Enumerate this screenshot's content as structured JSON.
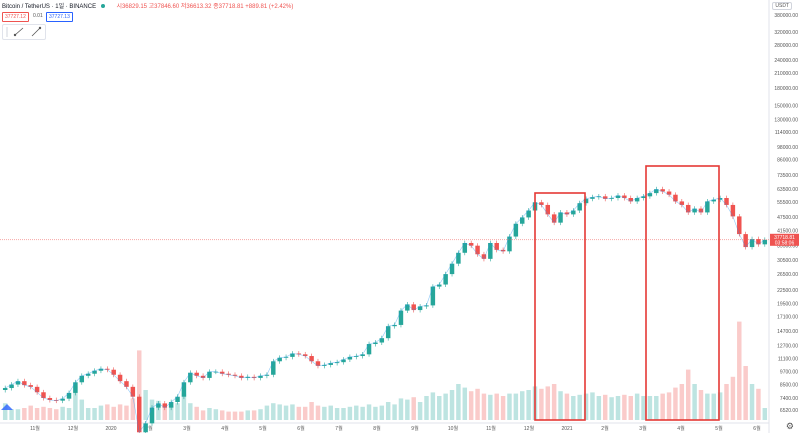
{
  "header": {
    "title": "Bitcoin / TetherUS · 1일 · BINANCE",
    "ohlc": "시36829.15 고37846.60 저36613.32 종37718.81 +889.81 (+2.42%)"
  },
  "trade": {
    "sell_price": "37727.12",
    "spread": "0.01",
    "buy_price": "37727.13"
  },
  "currency": "USDT",
  "price_label": {
    "value": "37718.81",
    "timer": "03:58:06"
  },
  "icons": {
    "settings": "gear-icon",
    "tool_a": "chart-tool-icon",
    "tool_b": "pencil-icon",
    "logo": "brand-logo-icon"
  },
  "colors": {
    "up": "#26a69a",
    "down": "#ef5350",
    "highlight": "#e53935",
    "blue_line": "#2196f3"
  },
  "chart_data": {
    "type": "candlestick",
    "y_axis_scale": "log",
    "y_ticks": [
      "380000.00",
      "320000.00",
      "280000.00",
      "240000.00",
      "210000.00",
      "180000.00",
      "150000.00",
      "130000.00",
      "114000.00",
      "98000.00",
      "86000.00",
      "73500.00",
      "63500.00",
      "55500.00",
      "47500.00",
      "41500.00",
      "35500.00",
      "30500.00",
      "26500.00",
      "22500.00",
      "19500.00",
      "17100.00",
      "14700.00",
      "12700.00",
      "11100.00",
      "9700.00",
      "8500.00",
      "7400.00",
      "6520.00"
    ],
    "x_ticks": [
      "11월",
      "12월",
      "2020",
      "2월",
      "3월",
      "4월",
      "5월",
      "6월",
      "7월",
      "8월",
      "9월",
      "10월",
      "11월",
      "12월",
      "2021",
      "2월",
      "3월",
      "4월",
      "5월",
      "6월"
    ],
    "closes": [
      8200,
      8500,
      8800,
      8450,
      8300,
      7850,
      7400,
      7250,
      7200,
      7350,
      7800,
      8700,
      9300,
      9500,
      9800,
      10000,
      9900,
      9400,
      8800,
      8300,
      7500,
      5200,
      5700,
      6700,
      7000,
      6700,
      7100,
      7500,
      8700,
      9600,
      9300,
      9100,
      9700,
      9700,
      9500,
      9400,
      9300,
      9100,
      9200,
      9100,
      9300,
      9400,
      10800,
      11200,
      11300,
      11700,
      11600,
      11400,
      10800,
      10300,
      10400,
      10600,
      10700,
      11000,
      11300,
      11400,
      11600,
      12900,
      13100,
      13700,
      15500,
      15700,
      18200,
      19400,
      18300,
      19000,
      19200,
      23300,
      23800,
      26500,
      29500,
      33000,
      36500,
      35500,
      32500,
      31000,
      36500,
      34000,
      33500,
      39000,
      44500,
      47500,
      51000,
      55500,
      54000,
      49000,
      45000,
      50000,
      49000,
      51000,
      55000,
      57500,
      58500,
      59000,
      57500,
      58000,
      59500,
      58000,
      56000,
      58000,
      59000,
      61000,
      63500,
      62000,
      60000,
      56000,
      54000,
      50000,
      52000,
      50000,
      56000,
      57000,
      58000,
      54000,
      48000,
      40000,
      35000,
      38000,
      36000,
      37718.81
    ],
    "volume_rel": [
      0.14,
      0.09,
      0.09,
      0.1,
      0.12,
      0.1,
      0.11,
      0.1,
      0.09,
      0.11,
      0.1,
      0.28,
      0.17,
      0.1,
      0.1,
      0.12,
      0.13,
      0.11,
      0.13,
      0.12,
      0.18,
      0.58,
      0.25,
      0.17,
      0.16,
      0.13,
      0.12,
      0.14,
      0.22,
      0.14,
      0.11,
      0.08,
      0.1,
      0.09,
      0.08,
      0.07,
      0.07,
      0.07,
      0.08,
      0.08,
      0.09,
      0.12,
      0.14,
      0.13,
      0.12,
      0.13,
      0.11,
      0.11,
      0.15,
      0.12,
      0.11,
      0.12,
      0.1,
      0.1,
      0.11,
      0.12,
      0.11,
      0.13,
      0.11,
      0.12,
      0.15,
      0.13,
      0.18,
      0.17,
      0.19,
      0.15,
      0.2,
      0.23,
      0.2,
      0.22,
      0.25,
      0.3,
      0.27,
      0.24,
      0.26,
      0.22,
      0.21,
      0.22,
      0.2,
      0.22,
      0.22,
      0.24,
      0.25,
      0.28,
      0.26,
      0.28,
      0.3,
      0.24,
      0.22,
      0.2,
      0.21,
      0.22,
      0.23,
      0.2,
      0.21,
      0.19,
      0.2,
      0.21,
      0.2,
      0.22,
      0.2,
      0.2,
      0.2,
      0.22,
      0.23,
      0.27,
      0.3,
      0.42,
      0.3,
      0.25,
      0.22,
      0.22,
      0.23,
      0.3,
      0.36,
      0.82,
      0.45,
      0.3,
      0.26,
      0.1
    ]
  }
}
